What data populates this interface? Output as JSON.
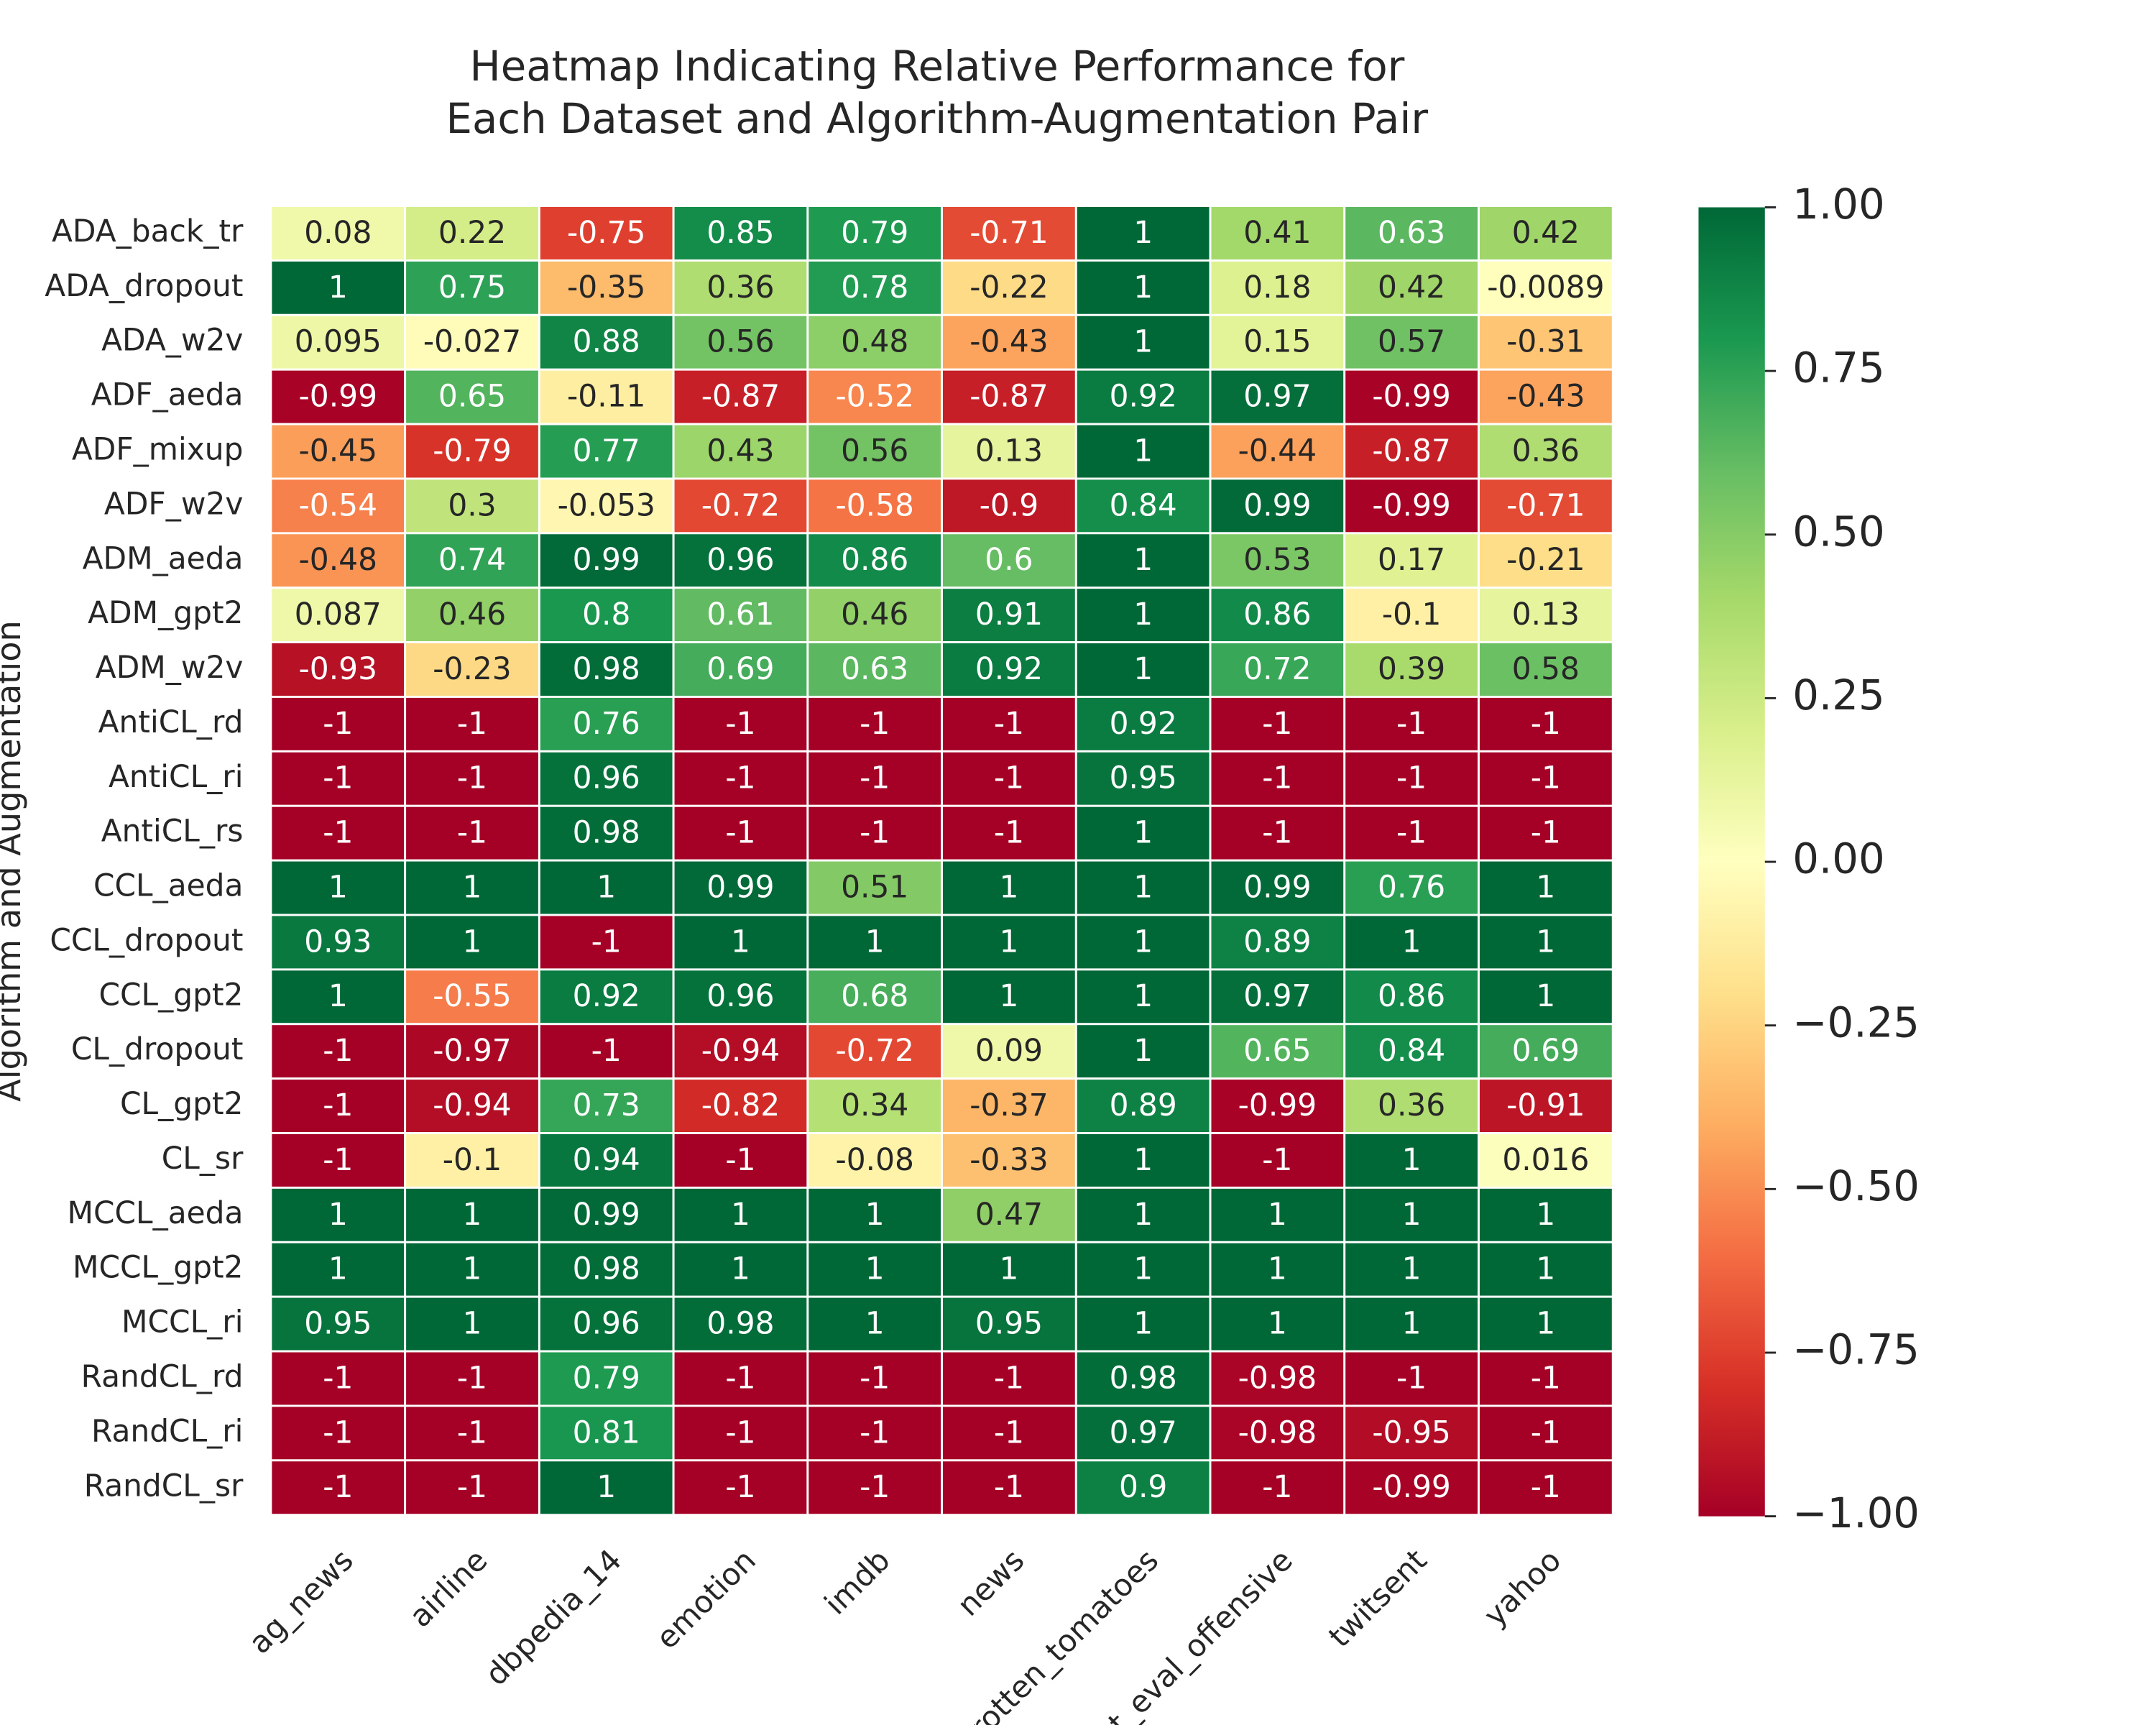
{
  "chart_data": {
    "type": "heatmap",
    "title": [
      "Heatmap Indicating Relative Performance for",
      "Each Dataset and Algorithm-Augmentation Pair"
    ],
    "ylabel": "Algorithm and Augmentation",
    "colormap": "RdYlGn",
    "categories": [
      "ag_news",
      "airline",
      "dbpedia_14",
      "emotion",
      "imdb",
      "news",
      "rotten_tomatoes",
      "tweet_eval_offensive",
      "twitsent",
      "yahoo"
    ],
    "rows": [
      "ADA_back_tr",
      "ADA_dropout",
      "ADA_w2v",
      "ADF_aeda",
      "ADF_mixup",
      "ADF_w2v",
      "ADM_aeda",
      "ADM_gpt2",
      "ADM_w2v",
      "AntiCL_rd",
      "AntiCL_ri",
      "AntiCL_rs",
      "CCL_aeda",
      "CCL_dropout",
      "CCL_gpt2",
      "CL_dropout",
      "CL_gpt2",
      "CL_sr",
      "MCCL_aeda",
      "MCCL_gpt2",
      "MCCL_ri",
      "RandCL_rd",
      "RandCL_ri",
      "RandCL_sr"
    ],
    "values": [
      [
        0.08,
        0.22,
        -0.75,
        0.85,
        0.79,
        -0.71,
        1,
        0.41,
        0.63,
        0.42
      ],
      [
        1,
        0.75,
        -0.35,
        0.36,
        0.78,
        -0.22,
        1,
        0.18,
        0.42,
        -0.0089
      ],
      [
        0.095,
        -0.027,
        0.88,
        0.56,
        0.48,
        -0.43,
        1,
        0.15,
        0.57,
        -0.31
      ],
      [
        -0.99,
        0.65,
        -0.11,
        -0.87,
        -0.52,
        -0.87,
        0.92,
        0.97,
        -0.99,
        -0.43
      ],
      [
        -0.45,
        -0.79,
        0.77,
        0.43,
        0.56,
        0.13,
        1,
        -0.44,
        -0.87,
        0.36
      ],
      [
        -0.54,
        0.3,
        -0.053,
        -0.72,
        -0.58,
        -0.9,
        0.84,
        0.99,
        -0.99,
        -0.71
      ],
      [
        -0.48,
        0.74,
        0.99,
        0.96,
        0.86,
        0.6,
        1,
        0.53,
        0.17,
        -0.21
      ],
      [
        0.087,
        0.46,
        0.8,
        0.61,
        0.46,
        0.91,
        1,
        0.86,
        -0.1,
        0.13
      ],
      [
        -0.93,
        -0.23,
        0.98,
        0.69,
        0.63,
        0.92,
        1,
        0.72,
        0.39,
        0.58
      ],
      [
        -1,
        -1,
        0.76,
        -1,
        -1,
        -1,
        0.92,
        -1,
        -1,
        -1
      ],
      [
        -1,
        -1,
        0.96,
        -1,
        -1,
        -1,
        0.95,
        -1,
        -1,
        -1
      ],
      [
        -1,
        -1,
        0.98,
        -1,
        -1,
        -1,
        1,
        -1,
        -1,
        -1
      ],
      [
        1,
        1,
        1,
        0.99,
        0.51,
        1,
        1,
        0.99,
        0.76,
        1
      ],
      [
        0.93,
        1,
        -1,
        1,
        1,
        1,
        1,
        0.89,
        1,
        1
      ],
      [
        1,
        -0.55,
        0.92,
        0.96,
        0.68,
        1,
        1,
        0.97,
        0.86,
        1
      ],
      [
        -1,
        -0.97,
        -1,
        -0.94,
        -0.72,
        0.09,
        1,
        0.65,
        0.84,
        0.69
      ],
      [
        -1,
        -0.94,
        0.73,
        -0.82,
        0.34,
        -0.37,
        0.89,
        -0.99,
        0.36,
        -0.91
      ],
      [
        -1,
        -0.1,
        0.94,
        -1,
        -0.08,
        -0.33,
        1,
        -1,
        1,
        0.016
      ],
      [
        1,
        1,
        0.99,
        1,
        1,
        0.47,
        1,
        1,
        1,
        1
      ],
      [
        1,
        1,
        0.98,
        1,
        1,
        1,
        1,
        1,
        1,
        1
      ],
      [
        0.95,
        1,
        0.96,
        0.98,
        1,
        0.95,
        1,
        1,
        1,
        1
      ],
      [
        -1,
        -1,
        0.79,
        -1,
        -1,
        -1,
        0.98,
        -0.98,
        -1,
        -1
      ],
      [
        -1,
        -1,
        0.81,
        -1,
        -1,
        -1,
        0.97,
        -0.98,
        -0.95,
        -1
      ],
      [
        -1,
        -1,
        1,
        -1,
        -1,
        -1,
        0.9,
        -1,
        -0.99,
        -1
      ]
    ],
    "colorbar": {
      "ylim": [
        -1,
        1
      ],
      "yticks": [
        {
          "value": 1,
          "label": "1.00"
        },
        {
          "value": 0.75,
          "label": "0.75"
        },
        {
          "value": 0.5,
          "label": "0.50"
        },
        {
          "value": 0.25,
          "label": "0.25"
        },
        {
          "value": 0,
          "label": "0.00"
        },
        {
          "value": -0.25,
          "label": "−0.25"
        },
        {
          "value": -0.5,
          "label": "−0.50"
        },
        {
          "value": -0.75,
          "label": "−0.75"
        },
        {
          "value": -1,
          "label": "−1.00"
        }
      ]
    }
  }
}
